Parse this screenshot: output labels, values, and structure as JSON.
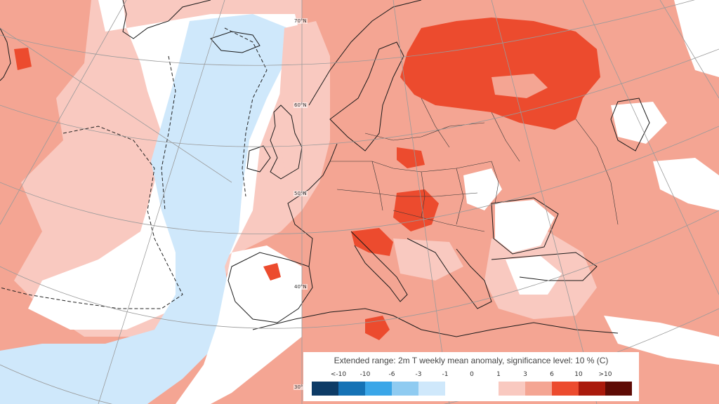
{
  "map": {
    "legend": {
      "title": "Extended range: 2m T weekly mean anomaly, significance level: 10 % (C)",
      "tick_labels": [
        "<-10",
        "-10",
        "-6",
        "-3",
        "-1",
        "0",
        "1",
        "3",
        "6",
        "10",
        ">10"
      ],
      "colors": [
        "#0d3b66",
        "#1572b5",
        "#3aa6e8",
        "#8fcbf1",
        "#cfe8fb",
        "#ffffff",
        "#ffffff",
        "#f9c9c0",
        "#f4a593",
        "#ec4b2e",
        "#aa1a0c",
        "#5e0b05"
      ]
    },
    "graticule_labels": [
      "70°N",
      "60°N",
      "50°N",
      "40°N",
      "30°N"
    ],
    "colors": {
      "land_anomaly": "#f4a593",
      "light_anomaly": "#f9c9c0",
      "strong_anomaly": "#ec4b2e",
      "neutral": "#ffffff",
      "cold_anomaly": "#cfe8fb",
      "border": "#1a1a1a",
      "graticule": "#9a9a9a"
    }
  }
}
